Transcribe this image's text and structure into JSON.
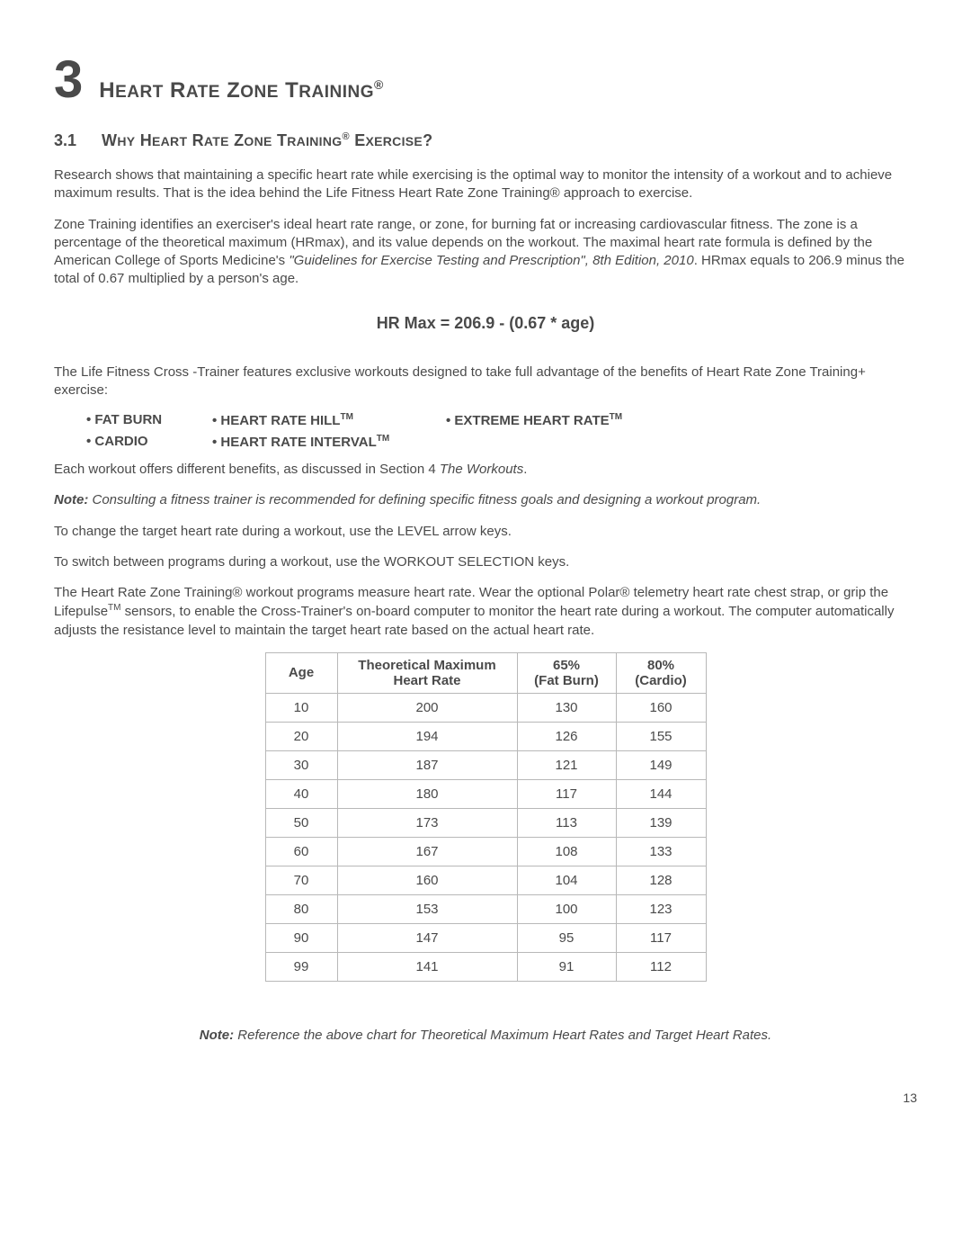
{
  "chapter": {
    "number": "3",
    "title_html": "H<span style='font-size:19px'>EART</span> R<span style='font-size:19px'>ATE</span> Z<span style='font-size:19px'>ONE</span> T<span style='font-size:19px'>RAINING</span><sup>®</sup>"
  },
  "section": {
    "number": "3.1",
    "title_html": "W<span style='font-size:14px'>HY</span> H<span style='font-size:14px'>EART</span> R<span style='font-size:14px'>ATE</span> Z<span style='font-size:14px'>ONE</span> T<span style='font-size:14px'>RAINING</span><sup>®</sup> E<span style='font-size:14px'>XERCISE</span>?"
  },
  "p1": "Research shows that maintaining a specific heart rate while exercising is the optimal way to monitor the intensity of a workout and to achieve maximum results. That is the idea behind the Life Fitness Heart Rate Zone Training® approach to exercise.",
  "p2_html": "Zone Training identifies an exerciser's ideal heart rate range, or zone, for burning fat or increasing cardiovascular fitness. The zone is a percentage of the theoretical maximum (HRmax), and its value depends on the workout. The maximal heart rate formula is defined by the American College of Sports Medicine's <span class='italic'>\"Guidelines for Exercise Testing and Prescription\", 8th Edition, 2010</span>.  HRmax equals to 206.9 minus the total of 0.67 multiplied by a person's age.",
  "formula": "HR Max = 206.9 - (0.67 * age)",
  "p3": "The Life Fitness Cross -Trainer features exclusive workouts designed to take full advantage of the benefits of Heart Rate Zone Training+ exercise:",
  "workouts": {
    "row1": {
      "c1": "• FAT BURN",
      "c2_html": "• HEART RATE HILL<span class='tm'>TM</span>",
      "c3_html": "• EXTREME HEART RATE<span class='tm'>TM</span>"
    },
    "row2": {
      "c1": "• CARDIO",
      "c2_html": "• HEART RATE INTERVAL<span class='tm'>TM</span>"
    }
  },
  "p4_html": "Each workout offers different benefits, as discussed in Section 4 <span class='italic'>The Workouts</span>.",
  "note1_html": "<span class='note-label'>Note:</span> <span class='note-body'>Consulting a fitness trainer is recommended for defining specific fitness goals and designing a workout program.</span>",
  "p5": "To change the target heart rate during a workout, use the LEVEL arrow keys.",
  "p6": "To switch between programs during a workout, use the WORKOUT SELECTION keys.",
  "p7_html": "The Heart Rate Zone Training® workout programs measure heart rate. Wear the optional Polar® telemetry heart rate chest strap, or grip the Lifepulse<span class='tm'>TM</span> sensors, to enable the Cross-Trainer's on-board computer to monitor the heart rate during a workout. The computer automatically adjusts the resistance level to maintain the target heart rate based on the actual heart rate.",
  "table": {
    "headers": {
      "age": "Age",
      "thm_html": "Theoretical Maximum<br>Heart Rate",
      "p65_html": "65%<br>(Fat Burn)",
      "p80_html": "80%<br>(Cardio)"
    },
    "rows": [
      {
        "age": "10",
        "thm": "200",
        "p65": "130",
        "p80": "160"
      },
      {
        "age": "20",
        "thm": "194",
        "p65": "126",
        "p80": "155"
      },
      {
        "age": "30",
        "thm": "187",
        "p65": "121",
        "p80": "149"
      },
      {
        "age": "40",
        "thm": "180",
        "p65": "117",
        "p80": "144"
      },
      {
        "age": "50",
        "thm": "173",
        "p65": "113",
        "p80": "139"
      },
      {
        "age": "60",
        "thm": "167",
        "p65": "108",
        "p80": "133"
      },
      {
        "age": "70",
        "thm": "160",
        "p65": "104",
        "p80": "128"
      },
      {
        "age": "80",
        "thm": "153",
        "p65": "100",
        "p80": "123"
      },
      {
        "age": "90",
        "thm": "147",
        "p65": "95",
        "p80": "117"
      },
      {
        "age": "99",
        "thm": "141",
        "p65": "91",
        "p80": "112"
      }
    ]
  },
  "footer_note_html": "<span class='note-label'>Note:</span> <span class='note-body'>Reference the above chart for Theoretical Maximum Heart Rates and Target Heart Rates.</span>",
  "page_number": "13"
}
